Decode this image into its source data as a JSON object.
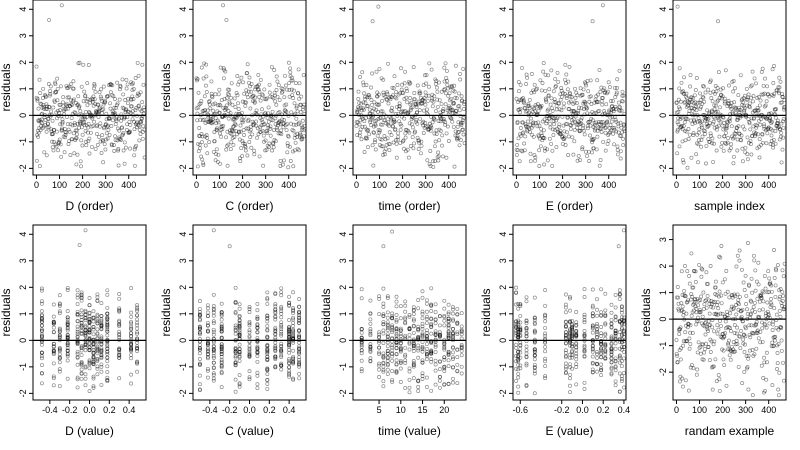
{
  "chart_data": [
    {
      "type": "scatter",
      "xlabel": "D (order)",
      "ylabel": "residuals",
      "xlim": [
        -15,
        475
      ],
      "ylim": [
        -2.25,
        4.35
      ],
      "xticks": [
        "0",
        "100",
        "200",
        "300",
        "400"
      ],
      "yticks": [
        "-2",
        "-1",
        "0",
        "1",
        "2",
        "3",
        "4"
      ],
      "reference_line_y": 0,
      "n_points": 470,
      "x_kind": "order",
      "outliers": [
        {
          "x": 55,
          "y": 3.6
        },
        {
          "x": 110,
          "y": 4.15
        }
      ]
    },
    {
      "type": "scatter",
      "xlabel": "C (order)",
      "ylabel": "residuals",
      "xlim": [
        -15,
        475
      ],
      "ylim": [
        -2.25,
        4.35
      ],
      "xticks": [
        "0",
        "100",
        "200",
        "300",
        "400"
      ],
      "yticks": [
        "-2",
        "-1",
        "0",
        "1",
        "2",
        "3",
        "4"
      ],
      "reference_line_y": 0,
      "n_points": 470,
      "x_kind": "order",
      "outliers": [
        {
          "x": 115,
          "y": 4.15
        },
        {
          "x": 130,
          "y": 3.6
        }
      ]
    },
    {
      "type": "scatter",
      "xlabel": "time (order)",
      "ylabel": "residuals",
      "xlim": [
        -15,
        475
      ],
      "ylim": [
        -2.25,
        4.35
      ],
      "xticks": [
        "0",
        "100",
        "200",
        "300",
        "400"
      ],
      "yticks": [
        "-2",
        "-1",
        "0",
        "1",
        "2",
        "3",
        "4"
      ],
      "reference_line_y": 0,
      "n_points": 470,
      "x_kind": "order",
      "outliers": [
        {
          "x": 70,
          "y": 3.55
        },
        {
          "x": 95,
          "y": 4.1
        }
      ]
    },
    {
      "type": "scatter",
      "xlabel": "E (order)",
      "ylabel": "residuals",
      "xlim": [
        -15,
        475
      ],
      "ylim": [
        -2.25,
        4.35
      ],
      "xticks": [
        "0",
        "100",
        "200",
        "300",
        "400"
      ],
      "yticks": [
        "-2",
        "-1",
        "0",
        "1",
        "2",
        "3",
        "4"
      ],
      "reference_line_y": 0,
      "n_points": 470,
      "x_kind": "order",
      "outliers": [
        {
          "x": 330,
          "y": 3.55
        },
        {
          "x": 375,
          "y": 4.15
        }
      ]
    },
    {
      "type": "scatter",
      "xlabel": "sample index",
      "ylabel": "residuals",
      "xlim": [
        -15,
        475
      ],
      "ylim": [
        -2.25,
        4.35
      ],
      "xticks": [
        "0",
        "100",
        "200",
        "300",
        "400"
      ],
      "yticks": [
        "-2",
        "-1",
        "0",
        "1",
        "2",
        "3",
        "4"
      ],
      "reference_line_y": 0,
      "n_points": 470,
      "x_kind": "order",
      "outliers": [
        {
          "x": 5,
          "y": 4.1
        },
        {
          "x": 180,
          "y": 3.55
        }
      ]
    },
    {
      "type": "scatter",
      "xlabel": "D (value)",
      "ylabel": "residuals",
      "xlim": [
        -0.57,
        0.57
      ],
      "ylim": [
        -2.25,
        4.35
      ],
      "xticks": [
        "-0.4",
        "-0.2",
        "0.0",
        "0.2",
        "0.4"
      ],
      "yticks": [
        "-2",
        "-1",
        "0",
        "1",
        "2",
        "3",
        "4"
      ],
      "reference_line_y": 0,
      "n_points": 470,
      "x_kind": "discrete",
      "x_levels": [
        -0.48,
        -0.36,
        -0.3,
        -0.22,
        -0.12,
        -0.08,
        -0.04,
        0.0,
        0.04,
        0.08,
        0.12,
        0.18,
        0.3,
        0.42,
        0.48
      ],
      "outliers": [
        {
          "x": -0.1,
          "y": 3.6
        },
        {
          "x": -0.04,
          "y": 4.15
        }
      ]
    },
    {
      "type": "scatter",
      "xlabel": "C (value)",
      "ylabel": "residuals",
      "xlim": [
        -0.57,
        0.57
      ],
      "ylim": [
        -2.25,
        4.35
      ],
      "xticks": [
        "-0.4",
        "-0.2",
        "0.0",
        "0.2",
        "0.4"
      ],
      "yticks": [
        "-2",
        "-1",
        "0",
        "1",
        "2",
        "3",
        "4"
      ],
      "reference_line_y": 0,
      "n_points": 470,
      "x_kind": "discrete",
      "x_levels": [
        -0.5,
        -0.42,
        -0.36,
        -0.28,
        -0.14,
        -0.1,
        0.0,
        0.08,
        0.18,
        0.26,
        0.32,
        0.4,
        0.44,
        0.5
      ],
      "outliers": [
        {
          "x": -0.36,
          "y": 4.15
        },
        {
          "x": -0.2,
          "y": 3.55
        }
      ]
    },
    {
      "type": "scatter",
      "xlabel": "time (value)",
      "ylabel": "residuals",
      "xlim": [
        -1,
        25
      ],
      "ylim": [
        -2.25,
        4.35
      ],
      "xticks": [
        "5",
        "10",
        "15",
        "20"
      ],
      "yticks": [
        "-2",
        "-1",
        "0",
        "1",
        "2",
        "3",
        "4"
      ],
      "reference_line_y": 0,
      "n_points": 470,
      "x_kind": "discrete",
      "x_levels": [
        1,
        3,
        5,
        6,
        7,
        8,
        9,
        10,
        11,
        12,
        13,
        14,
        15,
        16,
        17,
        18,
        19,
        20,
        21,
        22,
        23,
        24
      ],
      "outliers": [
        {
          "x": 6,
          "y": 3.55
        },
        {
          "x": 8,
          "y": 4.1
        }
      ]
    },
    {
      "type": "scatter",
      "xlabel": "E (value)",
      "ylabel": "residuals",
      "xlim": [
        -0.67,
        0.42
      ],
      "ylim": [
        -2.25,
        4.35
      ],
      "xticks": [
        "-0.6",
        "-0.2",
        "0.0",
        "0.2",
        "0.4"
      ],
      "yticks": [
        "-2",
        "-1",
        "0",
        "1",
        "2",
        "3",
        "4"
      ],
      "reference_line_y": 0,
      "n_points": 470,
      "x_kind": "discrete",
      "x_levels": [
        -0.64,
        -0.62,
        -0.6,
        -0.54,
        -0.46,
        -0.36,
        -0.16,
        -0.12,
        -0.1,
        -0.06,
        0.02,
        0.1,
        0.14,
        0.18,
        0.22,
        0.28,
        0.32,
        0.36,
        0.38,
        0.4
      ],
      "outliers": [
        {
          "x": 0.35,
          "y": 3.55
        },
        {
          "x": 0.4,
          "y": 4.15
        }
      ]
    },
    {
      "type": "scatter",
      "xlabel": "randam example",
      "ylabel": "residuals",
      "xlim": [
        -15,
        475
      ],
      "ylim": [
        -3.05,
        3.55
      ],
      "xticks": [
        "0",
        "100",
        "200",
        "300",
        "400"
      ],
      "yticks": [
        "-2",
        "-1",
        "0",
        "1",
        "2",
        "3"
      ],
      "reference_line_y": 0,
      "n_points": 470,
      "x_kind": "order",
      "spread": "wide",
      "outliers": []
    }
  ]
}
